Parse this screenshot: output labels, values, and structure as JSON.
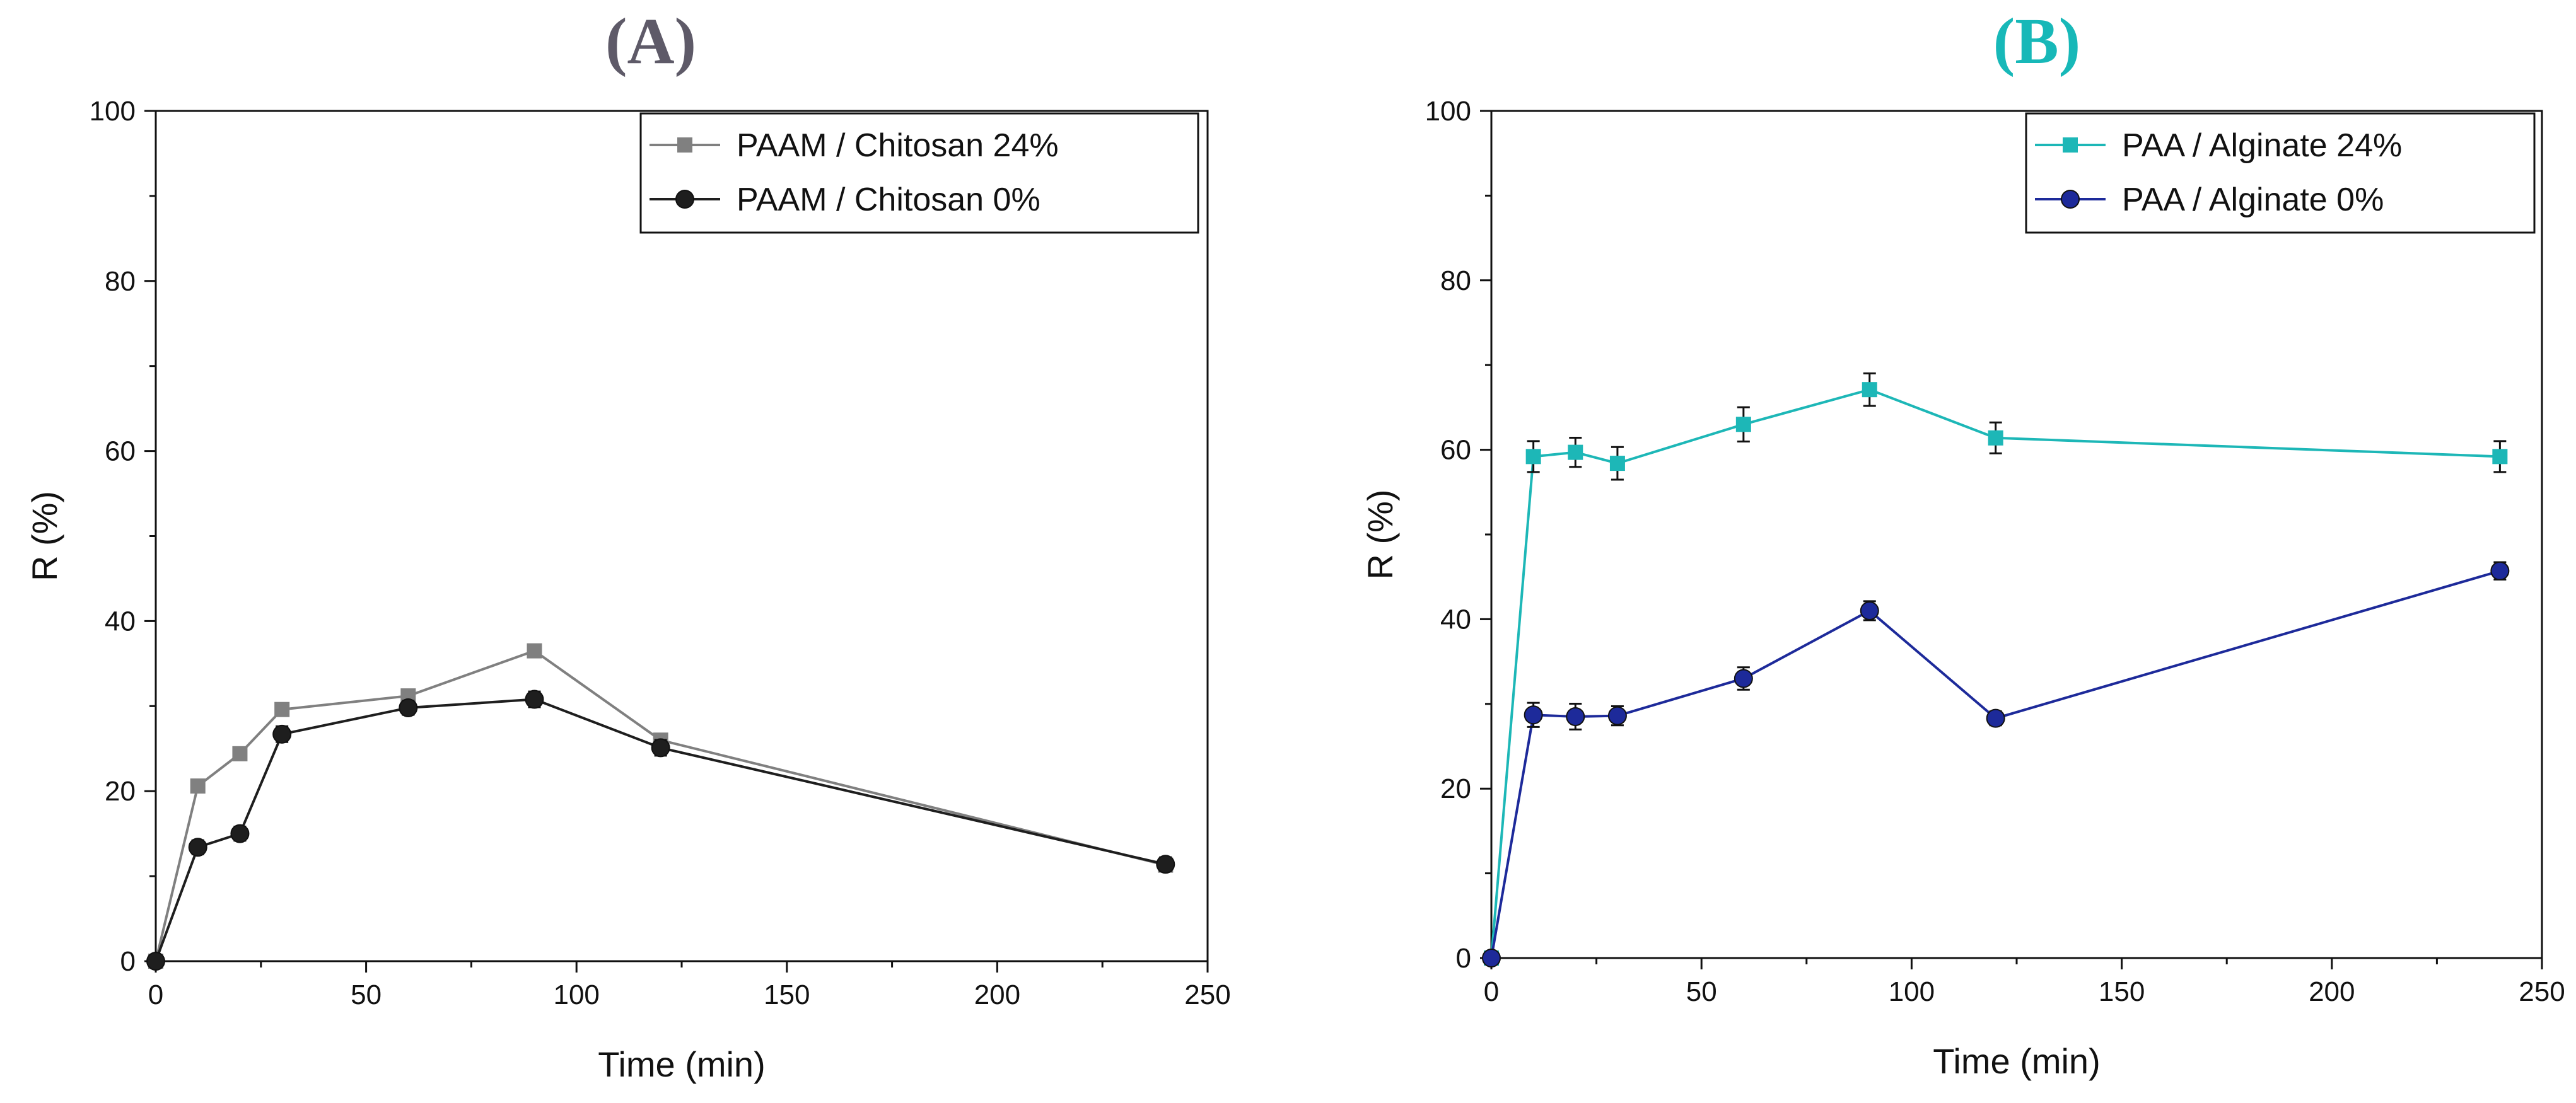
{
  "chart_data": [
    {
      "type": "line",
      "panel_label": "(A)",
      "title_color": "#5e5a68",
      "xlabel": "Time (min)",
      "ylabel": "R (%)",
      "xlim": [
        0,
        250
      ],
      "ylim": [
        0,
        100
      ],
      "xticks": [
        0,
        50,
        100,
        150,
        200,
        250
      ],
      "yticks": [
        0,
        20,
        40,
        60,
        80,
        100
      ],
      "legend_position": "top-right",
      "series": [
        {
          "name": "PAAM / Chitosan 24%",
          "color": "#808080",
          "marker": "square",
          "x": [
            0,
            10,
            20,
            30,
            60,
            90,
            120,
            240
          ],
          "y": [
            0,
            20.6,
            24.4,
            29.6,
            31.2,
            36.5,
            26.0,
            11.3
          ],
          "err": [
            0,
            0,
            0,
            0,
            0,
            0,
            0,
            0
          ]
        },
        {
          "name": "PAAM / Chitosan 0%",
          "color": "#1e1e1e",
          "marker": "circle",
          "x": [
            0,
            10,
            20,
            30,
            60,
            90,
            120,
            240
          ],
          "y": [
            0,
            13.4,
            15.0,
            26.7,
            29.8,
            30.8,
            25.1,
            11.4
          ],
          "err": [
            0,
            0.6,
            0.6,
            0.7,
            0.6,
            0.7,
            0.7,
            0.6
          ]
        }
      ]
    },
    {
      "type": "line",
      "panel_label": "(B)",
      "title_color": "#17b8b8",
      "xlabel": "Time (min)",
      "ylabel": "R (%)",
      "xlim": [
        0,
        250
      ],
      "ylim": [
        0,
        100
      ],
      "xticks": [
        0,
        50,
        100,
        150,
        200,
        250
      ],
      "yticks": [
        0,
        20,
        40,
        60,
        80,
        100
      ],
      "legend_position": "top-right",
      "series": [
        {
          "name": "PAA / Alginate 24%",
          "color": "#1db7b7",
          "marker": "square",
          "x": [
            0,
            10,
            20,
            30,
            60,
            90,
            120,
            240
          ],
          "y": [
            0,
            59.2,
            59.7,
            58.4,
            63.0,
            67.1,
            61.4,
            59.2
          ],
          "err": [
            0,
            1.6,
            1.5,
            1.7,
            1.8,
            1.7,
            1.6,
            1.6
          ]
        },
        {
          "name": "PAA / Alginate 0%",
          "color": "#1d2a9a",
          "marker": "circle",
          "x": [
            0,
            10,
            20,
            30,
            60,
            90,
            120,
            240
          ],
          "y": [
            0,
            28.7,
            28.5,
            28.6,
            33.0,
            41.0,
            28.3,
            45.7
          ],
          "err": [
            0,
            1.2,
            1.3,
            0.9,
            1.1,
            0.9,
            0.6,
            0.8
          ]
        }
      ]
    }
  ]
}
